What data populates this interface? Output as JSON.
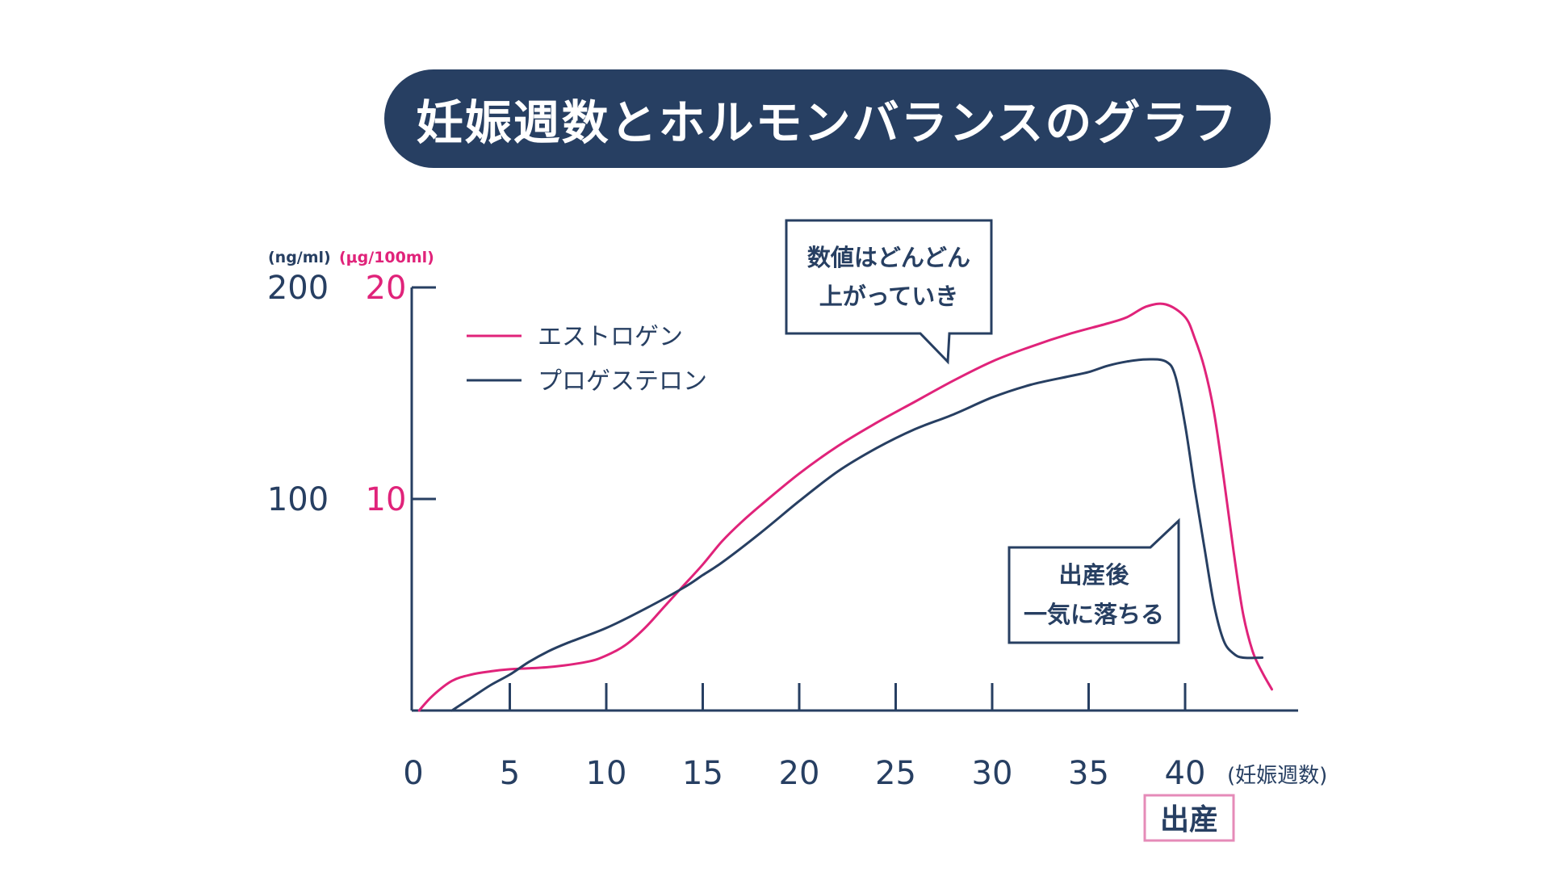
{
  "title": "妊娠週数とホルモンバランスのグラフ",
  "colors": {
    "navy": "#273f62",
    "pink": "#e0237a",
    "pink_frame": "#e58bb8"
  },
  "axes": {
    "left_unit": "(ng/ml)",
    "right_unit": "(μg/100ml)",
    "x_unit": "(妊娠週数)",
    "birth_label": "出産"
  },
  "callouts": {
    "rise": [
      "数値はどんどん",
      "上がっていき"
    ],
    "drop": [
      "出産後",
      "一気に落ちる"
    ]
  },
  "chart_data": {
    "type": "line",
    "title": "妊娠週数とホルモンバランスのグラフ",
    "xlabel": "(妊娠週数)",
    "xlim": [
      0,
      45
    ],
    "x_ticks": [
      0,
      5,
      10,
      15,
      20,
      25,
      30,
      35,
      40
    ],
    "y_axes": [
      {
        "unit": "(ng/ml)",
        "ylim": [
          0,
          200
        ],
        "ticks": [
          100,
          200
        ],
        "color": "#273f62"
      },
      {
        "unit": "(μg/100ml)",
        "ylim": [
          0,
          20
        ],
        "ticks": [
          10,
          20
        ],
        "color": "#e0237a"
      }
    ],
    "legend": {
      "position": "top-left"
    },
    "series": [
      {
        "name": "エストロゲン",
        "color": "#e0237a",
        "axis": "(μg/100ml)",
        "points": [
          [
            0.3,
            0
          ],
          [
            1,
            0.7
          ],
          [
            2,
            1.4
          ],
          [
            3,
            1.7
          ],
          [
            4,
            1.85
          ],
          [
            5,
            1.95
          ],
          [
            7,
            2.05
          ],
          [
            9,
            2.3
          ],
          [
            10,
            2.6
          ],
          [
            11,
            3.1
          ],
          [
            12,
            3.9
          ],
          [
            13,
            4.9
          ],
          [
            14,
            5.9
          ],
          [
            15,
            6.9
          ],
          [
            16,
            8.0
          ],
          [
            17,
            8.9
          ],
          [
            18,
            9.7
          ],
          [
            20,
            11.2
          ],
          [
            22,
            12.5
          ],
          [
            24,
            13.6
          ],
          [
            26,
            14.6
          ],
          [
            28,
            15.6
          ],
          [
            30,
            16.5
          ],
          [
            32,
            17.2
          ],
          [
            34,
            17.8
          ],
          [
            36,
            18.3
          ],
          [
            37,
            18.6
          ],
          [
            38,
            19.1
          ],
          [
            39,
            19.2
          ],
          [
            40,
            18.6
          ],
          [
            40.5,
            17.6
          ],
          [
            41,
            16.2
          ],
          [
            41.5,
            14.1
          ],
          [
            42,
            11.0
          ],
          [
            42.5,
            7.6
          ],
          [
            43,
            4.6
          ],
          [
            43.5,
            2.8
          ],
          [
            44,
            1.8
          ],
          [
            44.5,
            1.0
          ]
        ]
      },
      {
        "name": "プロゲステロン",
        "color": "#273f62",
        "axis": "(ng/ml)",
        "points": [
          [
            2,
            0
          ],
          [
            3,
            6
          ],
          [
            4,
            12
          ],
          [
            5,
            17
          ],
          [
            6,
            23
          ],
          [
            7,
            28
          ],
          [
            8,
            32
          ],
          [
            10,
            39
          ],
          [
            12,
            48
          ],
          [
            14,
            58
          ],
          [
            15,
            64
          ],
          [
            16,
            70
          ],
          [
            18,
            84
          ],
          [
            20,
            99
          ],
          [
            22,
            113
          ],
          [
            24,
            124
          ],
          [
            26,
            133
          ],
          [
            28,
            140
          ],
          [
            30,
            148
          ],
          [
            32,
            154
          ],
          [
            34,
            158
          ],
          [
            35,
            160
          ],
          [
            36,
            163
          ],
          [
            37,
            165
          ],
          [
            38,
            166
          ],
          [
            39,
            165
          ],
          [
            39.5,
            158
          ],
          [
            40,
            135
          ],
          [
            40.5,
            105
          ],
          [
            41,
            77
          ],
          [
            41.5,
            50
          ],
          [
            42,
            33
          ],
          [
            42.5,
            27
          ],
          [
            43,
            25
          ],
          [
            44,
            25
          ]
        ]
      }
    ]
  }
}
